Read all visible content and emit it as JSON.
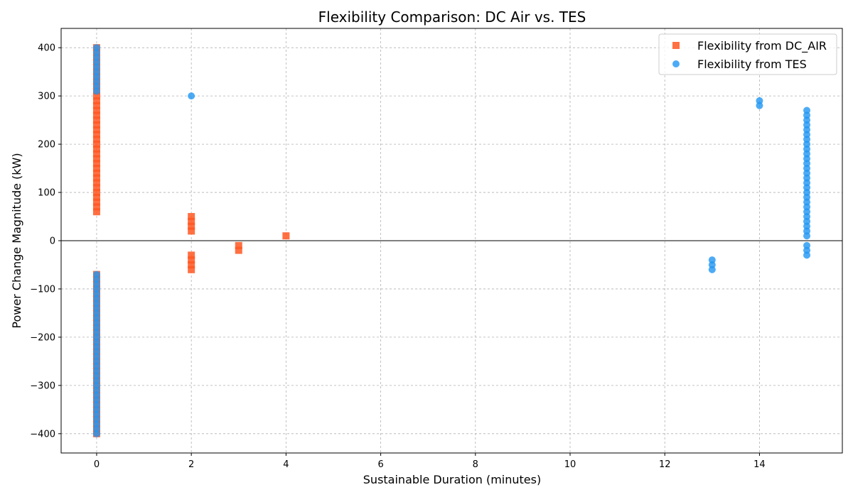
{
  "chart_data": {
    "type": "scatter",
    "title": "Flexibility Comparison: DC Air vs. TES",
    "xlabel": "Sustainable Duration (minutes)",
    "ylabel": "Power Change Magnitude (kW)",
    "xlim": [
      -0.75,
      15.75
    ],
    "ylim": [
      -440,
      440
    ],
    "xticks": [
      0,
      2,
      4,
      6,
      8,
      10,
      12,
      14
    ],
    "yticks": [
      -400,
      -300,
      -200,
      -100,
      0,
      100,
      200,
      300,
      400
    ],
    "ytick_labels": [
      "−400",
      "−300",
      "−200",
      "−100",
      "0",
      "100",
      "200",
      "300",
      "400"
    ],
    "grid": true,
    "legend_position": "top-right",
    "zero_line": true,
    "series": [
      {
        "name": "Flexibility from DC_AIR",
        "marker": "square",
        "color": "#ff5722",
        "points": [
          [
            0,
            60
          ],
          [
            0,
            70
          ],
          [
            0,
            80
          ],
          [
            0,
            90
          ],
          [
            0,
            100
          ],
          [
            0,
            110
          ],
          [
            0,
            120
          ],
          [
            0,
            130
          ],
          [
            0,
            140
          ],
          [
            0,
            150
          ],
          [
            0,
            160
          ],
          [
            0,
            170
          ],
          [
            0,
            180
          ],
          [
            0,
            190
          ],
          [
            0,
            200
          ],
          [
            0,
            210
          ],
          [
            0,
            220
          ],
          [
            0,
            230
          ],
          [
            0,
            240
          ],
          [
            0,
            250
          ],
          [
            0,
            260
          ],
          [
            0,
            270
          ],
          [
            0,
            280
          ],
          [
            0,
            290
          ],
          [
            0,
            300
          ],
          [
            0,
            310
          ],
          [
            0,
            320
          ],
          [
            0,
            330
          ],
          [
            0,
            340
          ],
          [
            0,
            350
          ],
          [
            0,
            360
          ],
          [
            0,
            370
          ],
          [
            0,
            380
          ],
          [
            0,
            390
          ],
          [
            0,
            400
          ],
          [
            0,
            -70
          ],
          [
            0,
            -80
          ],
          [
            0,
            -90
          ],
          [
            0,
            -100
          ],
          [
            0,
            -110
          ],
          [
            0,
            -120
          ],
          [
            0,
            -130
          ],
          [
            0,
            -140
          ],
          [
            0,
            -150
          ],
          [
            0,
            -160
          ],
          [
            0,
            -170
          ],
          [
            0,
            -180
          ],
          [
            0,
            -190
          ],
          [
            0,
            -200
          ],
          [
            0,
            -210
          ],
          [
            0,
            -220
          ],
          [
            0,
            -230
          ],
          [
            0,
            -240
          ],
          [
            0,
            -250
          ],
          [
            0,
            -260
          ],
          [
            0,
            -270
          ],
          [
            0,
            -280
          ],
          [
            0,
            -290
          ],
          [
            0,
            -300
          ],
          [
            0,
            -310
          ],
          [
            0,
            -320
          ],
          [
            0,
            -330
          ],
          [
            0,
            -340
          ],
          [
            0,
            -350
          ],
          [
            0,
            -360
          ],
          [
            0,
            -370
          ],
          [
            0,
            -380
          ],
          [
            0,
            -390
          ],
          [
            0,
            -400
          ],
          [
            2,
            20
          ],
          [
            2,
            30
          ],
          [
            2,
            40
          ],
          [
            2,
            50
          ],
          [
            2,
            -30
          ],
          [
            2,
            -40
          ],
          [
            2,
            -50
          ],
          [
            2,
            -60
          ],
          [
            3,
            -10
          ],
          [
            3,
            -20
          ],
          [
            4,
            10
          ]
        ]
      },
      {
        "name": "Flexibility from TES",
        "marker": "circle",
        "color": "#2196f3",
        "points": [
          [
            0,
            310
          ],
          [
            0,
            320
          ],
          [
            0,
            330
          ],
          [
            0,
            340
          ],
          [
            0,
            350
          ],
          [
            0,
            360
          ],
          [
            0,
            370
          ],
          [
            0,
            380
          ],
          [
            0,
            390
          ],
          [
            0,
            400
          ],
          [
            0,
            -70
          ],
          [
            0,
            -80
          ],
          [
            0,
            -90
          ],
          [
            0,
            -100
          ],
          [
            0,
            -110
          ],
          [
            0,
            -120
          ],
          [
            0,
            -130
          ],
          [
            0,
            -140
          ],
          [
            0,
            -150
          ],
          [
            0,
            -160
          ],
          [
            0,
            -170
          ],
          [
            0,
            -180
          ],
          [
            0,
            -190
          ],
          [
            0,
            -200
          ],
          [
            0,
            -210
          ],
          [
            0,
            -220
          ],
          [
            0,
            -230
          ],
          [
            0,
            -240
          ],
          [
            0,
            -250
          ],
          [
            0,
            -260
          ],
          [
            0,
            -270
          ],
          [
            0,
            -280
          ],
          [
            0,
            -290
          ],
          [
            0,
            -300
          ],
          [
            0,
            -310
          ],
          [
            0,
            -320
          ],
          [
            0,
            -330
          ],
          [
            0,
            -340
          ],
          [
            0,
            -350
          ],
          [
            0,
            -360
          ],
          [
            0,
            -370
          ],
          [
            0,
            -380
          ],
          [
            0,
            -390
          ],
          [
            0,
            -400
          ],
          [
            2,
            300
          ],
          [
            13,
            -40
          ],
          [
            13,
            -50
          ],
          [
            13,
            -60
          ],
          [
            14,
            280
          ],
          [
            14,
            290
          ],
          [
            15,
            10
          ],
          [
            15,
            20
          ],
          [
            15,
            30
          ],
          [
            15,
            40
          ],
          [
            15,
            50
          ],
          [
            15,
            60
          ],
          [
            15,
            70
          ],
          [
            15,
            80
          ],
          [
            15,
            90
          ],
          [
            15,
            100
          ],
          [
            15,
            110
          ],
          [
            15,
            120
          ],
          [
            15,
            130
          ],
          [
            15,
            140
          ],
          [
            15,
            150
          ],
          [
            15,
            160
          ],
          [
            15,
            170
          ],
          [
            15,
            180
          ],
          [
            15,
            190
          ],
          [
            15,
            200
          ],
          [
            15,
            210
          ],
          [
            15,
            220
          ],
          [
            15,
            230
          ],
          [
            15,
            240
          ],
          [
            15,
            250
          ],
          [
            15,
            260
          ],
          [
            15,
            270
          ],
          [
            15,
            -10
          ],
          [
            15,
            -20
          ],
          [
            15,
            -30
          ]
        ]
      }
    ]
  }
}
